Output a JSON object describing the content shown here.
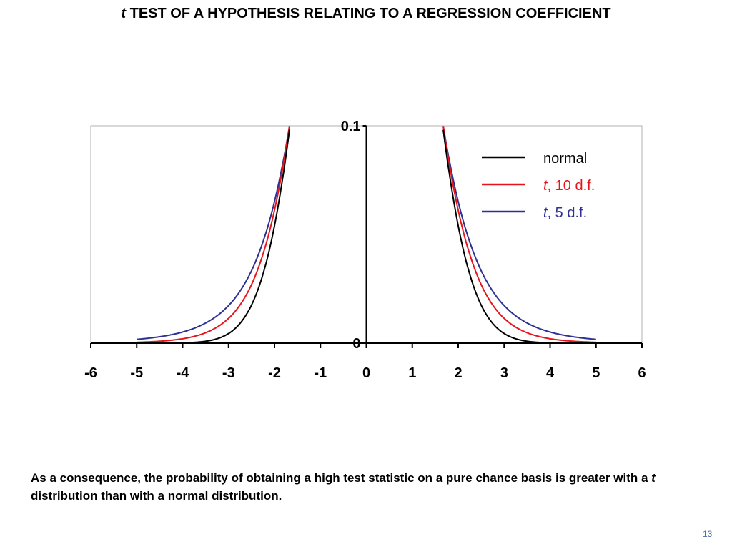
{
  "slide": {
    "title_italic": "t",
    "title_rest": " TEST OF A HYPOTHESIS RELATING TO A REGRESSION COEFFICIENT",
    "caption_part1": "As a consequence, the probability of obtaining a high test statistic on a pure chance basis is greater with a ",
    "caption_italic": "t",
    "caption_part2": " distribution than with a normal distribution.",
    "page_number": "13"
  },
  "chart_data": {
    "type": "line",
    "title": "",
    "xlabel": "",
    "ylabel": "",
    "xlim": [
      -6,
      6
    ],
    "ylim": [
      0,
      0.1
    ],
    "x_ticks": [
      "-6",
      "-5",
      "-4",
      "-3",
      "-2",
      "-1",
      "0",
      "1",
      "2",
      "3",
      "4",
      "5",
      "6"
    ],
    "y_ticks": [
      "0",
      "0.1"
    ],
    "x_domain": [
      -5,
      5
    ],
    "legend_position": "top-right",
    "series": [
      {
        "name": "normal",
        "name_italic": "",
        "name_rest": "normal",
        "df": null,
        "color": "#000000"
      },
      {
        "name": "t, 10 d.f.",
        "name_italic": "t",
        "name_rest": ", 10 d.f.",
        "df": 10,
        "color": "#e8141b"
      },
      {
        "name": "t, 5 d.f.",
        "name_italic": "t",
        "name_rest": ", 5 d.f.",
        "df": 5,
        "color": "#2e3192"
      }
    ]
  }
}
